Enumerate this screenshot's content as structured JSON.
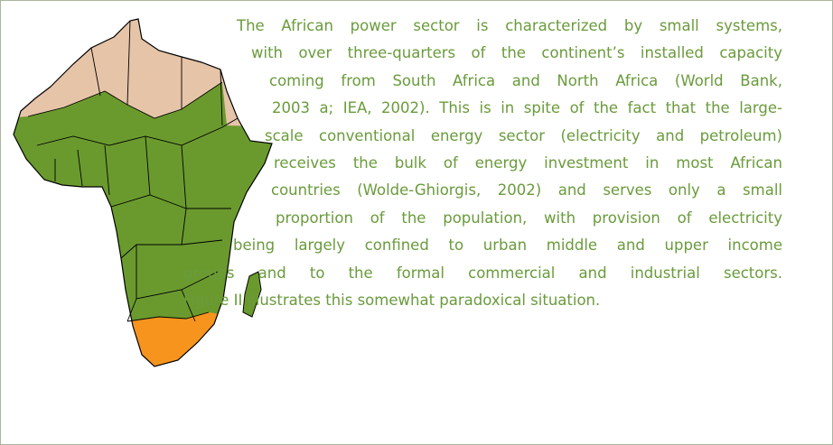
{
  "paragraph": {
    "lines": [
      "The African power sector is characterized by small systems,",
      "with over three-quarters of the continent’s installed capacity",
      "coming from South Africa and North Africa (World Bank,",
      "2003 a; IEA, 2002). This is in spite of the fact that the large-",
      "scale conventional energy sector (electricity and petroleum)",
      "receives the bulk of energy investment in most African",
      "countries (Wolde-Ghiorgis, 2002) and serves only a small",
      "proportion of the population, with provision of electricity",
      "being largely confined to urban middle and upper income",
      "groups and to the formal commercial and industrial sectors.",
      "Figure II illustrates this somewhat paradoxical situation."
    ]
  }
}
